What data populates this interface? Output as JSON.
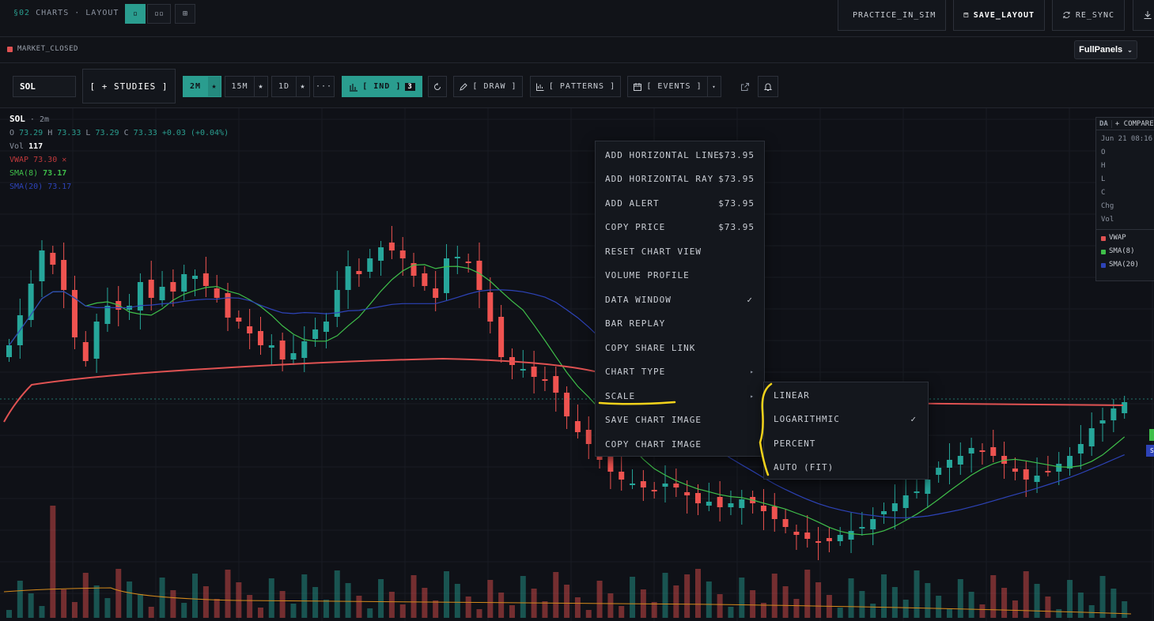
{
  "topbar": {
    "section_code": "§02",
    "section_title": "CHARTS · LAYOUT",
    "layout_buttons": [
      "▫",
      "▫▫",
      "⊞"
    ],
    "actions": {
      "practice": "PRACTICE_IN_SIM",
      "save": "SAVE_LAYOUT",
      "resync": "RE_SYNC"
    }
  },
  "status": {
    "market": "MARKET_CLOSED",
    "layout_select": "FullPanels"
  },
  "toolbar": {
    "symbol": "SOL",
    "studies": "[ + STUDIES ]",
    "timeframes": [
      "2M",
      "15M",
      "1D"
    ],
    "more": "···",
    "ind_label": "[ IND ]",
    "ind_count": "3",
    "draw": "[ DRAW ]",
    "patterns": "[ PATTERNS ]",
    "events": "[ EVENTS ]"
  },
  "legend": {
    "symbol": "SOL",
    "timeframe": "· 2m",
    "o_label": "O",
    "o": "73.29",
    "h_label": "H",
    "h": "73.33",
    "l_label": "L",
    "l": "73.29",
    "c_label": "C",
    "c": "73.33",
    "change": "+0.03 (+0.04%)",
    "vol_label": "Vol",
    "vol": "117",
    "vwap_label": "VWAP",
    "vwap": "73.30",
    "vwap_close": "✕",
    "sma8_label": "SMA(8)",
    "sma8": "73.17",
    "sma20_label": "SMA(20)",
    "sma20": "73.17"
  },
  "data_window": {
    "tab": "DA",
    "compare": "+ COMPARE",
    "date": "Jun 21 08:16",
    "rows": [
      "O",
      "H",
      "L",
      "C",
      "Chg",
      "Vol"
    ],
    "indicators": [
      {
        "name": "VWAP",
        "color": "#e05252"
      },
      {
        "name": "SMA(8)",
        "color": "#3fbf4a"
      },
      {
        "name": "SMA(20)",
        "color": "#2d43b8"
      }
    ]
  },
  "context_menu": {
    "items": [
      {
        "label": "ADD HORIZONTAL LINE",
        "value": "$73.95"
      },
      {
        "label": "ADD HORIZONTAL RAY",
        "value": "$73.95"
      },
      {
        "label": "ADD ALERT",
        "value": "$73.95"
      },
      {
        "label": "COPY PRICE",
        "value": "$73.95"
      },
      {
        "label": "RESET CHART VIEW",
        "value": ""
      },
      {
        "label": "VOLUME PROFILE",
        "value": ""
      },
      {
        "label": "DATA WINDOW",
        "value": "✓"
      },
      {
        "label": "BAR REPLAY",
        "value": ""
      },
      {
        "label": "COPY SHARE LINK",
        "value": ""
      },
      {
        "label": "CHART TYPE",
        "value": "▸"
      },
      {
        "label": "SCALE",
        "value": "▸"
      },
      {
        "label": "SAVE CHART IMAGE",
        "value": ""
      },
      {
        "label": "COPY CHART IMAGE",
        "value": ""
      }
    ]
  },
  "scale_submenu": {
    "items": [
      {
        "label": "LINEAR",
        "checked": ""
      },
      {
        "label": "LOGARITHMIC",
        "checked": "✓"
      },
      {
        "label": "PERCENT",
        "checked": ""
      },
      {
        "label": "AUTO (FIT)",
        "checked": ""
      }
    ]
  },
  "colors": {
    "accent": "#2a9d8f",
    "up": "#26a69a",
    "down": "#ef5350",
    "vwap": "#e05252",
    "sma8": "#3fbf4a",
    "sma20": "#2d43b8",
    "annotation": "#f2d21b"
  }
}
